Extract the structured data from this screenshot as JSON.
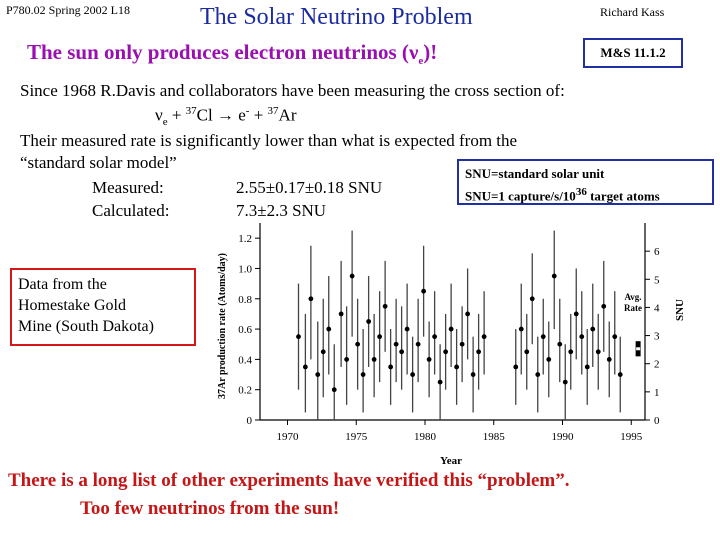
{
  "header": {
    "course": "P780.02 Spring 2002 L18",
    "title": "The Solar Neutrino Problem",
    "author": "Richard Kass"
  },
  "subtitle": {
    "text": "The sun only produces electron neutrinos (",
    "nu": "ν",
    "sub": "e",
    "close": ")!"
  },
  "ref_box": "M&S 11.1.2",
  "body": {
    "line1": "Since 1968 R.Davis and collaborators have been measuring the cross section of:",
    "reaction": {
      "lead": "ν",
      "nu_sub": "e",
      "plus1": " + ",
      "cl_mass": "37",
      "cl": "Cl ",
      "arrow": "→",
      "e": " e",
      "e_sup": "-",
      "plus2": " + ",
      "ar_mass": "37",
      "ar": "Ar"
    },
    "line3": "Their measured rate is significantly lower than what is expected from the",
    "line4": "“standard solar model”",
    "measured_label": "Measured:",
    "measured_value": "2.55±0.17±0.18 SNU",
    "calculated_label": "Calculated:",
    "calculated_value": "7.3±2.3 SNU"
  },
  "snu_box": {
    "line1": "SNU=standard solar unit",
    "line2_pre": "SNU=1 capture/s/10",
    "line2_exp": "36",
    "line2_post": " target atoms"
  },
  "data_box": {
    "line1": "Data from the",
    "line2": "Homestake Gold",
    "line3": "Mine (South Dakota)"
  },
  "bottom": {
    "line1": "There is a long list of other experiments have verified this “problem”.",
    "line2": "Too few neutrinos from the sun!"
  },
  "chart_data": {
    "type": "scatter",
    "xlabel": "Year",
    "ylabel": "37Ar production rate (Atoms/day)",
    "y2label": "SNU",
    "xlim": [
      1968,
      1996
    ],
    "ylim": [
      0,
      1.3
    ],
    "y2lim": [
      0,
      7
    ],
    "x_ticks": [
      "1970",
      "1975",
      "1980",
      "1985",
      "1990",
      "1995"
    ],
    "y_ticks": [
      "0",
      "0.2",
      "0.4",
      "0.6",
      "0.8",
      "1.0",
      "1.2"
    ],
    "y2_ticks": [
      "0",
      "1",
      "2",
      "3",
      "4",
      "5",
      "6"
    ],
    "annotation_line1": "Avg.",
    "annotation_line2": "Rate",
    "avg_rate": 0.47,
    "points": [
      {
        "x": 1970.8,
        "y": 0.55,
        "lo": 0.2,
        "hi": 0.9
      },
      {
        "x": 1971.3,
        "y": 0.35,
        "lo": 0.05,
        "hi": 0.7
      },
      {
        "x": 1971.7,
        "y": 0.8,
        "lo": 0.4,
        "hi": 1.15
      },
      {
        "x": 1972.2,
        "y": 0.3,
        "lo": 0.0,
        "hi": 0.65
      },
      {
        "x": 1972.6,
        "y": 0.45,
        "lo": 0.15,
        "hi": 0.8
      },
      {
        "x": 1973.0,
        "y": 0.6,
        "lo": 0.3,
        "hi": 0.95
      },
      {
        "x": 1973.4,
        "y": 0.2,
        "lo": 0.0,
        "hi": 0.5
      },
      {
        "x": 1973.9,
        "y": 0.7,
        "lo": 0.35,
        "hi": 1.05
      },
      {
        "x": 1974.3,
        "y": 0.4,
        "lo": 0.1,
        "hi": 0.75
      },
      {
        "x": 1974.7,
        "y": 0.95,
        "lo": 0.55,
        "hi": 1.25
      },
      {
        "x": 1975.1,
        "y": 0.5,
        "lo": 0.2,
        "hi": 0.8
      },
      {
        "x": 1975.5,
        "y": 0.3,
        "lo": 0.05,
        "hi": 0.6
      },
      {
        "x": 1975.9,
        "y": 0.65,
        "lo": 0.35,
        "hi": 0.95
      },
      {
        "x": 1976.3,
        "y": 0.4,
        "lo": 0.15,
        "hi": 0.7
      },
      {
        "x": 1976.7,
        "y": 0.55,
        "lo": 0.25,
        "hi": 0.85
      },
      {
        "x": 1977.1,
        "y": 0.75,
        "lo": 0.45,
        "hi": 1.05
      },
      {
        "x": 1977.5,
        "y": 0.35,
        "lo": 0.1,
        "hi": 0.6
      },
      {
        "x": 1977.9,
        "y": 0.5,
        "lo": 0.25,
        "hi": 0.8
      },
      {
        "x": 1978.3,
        "y": 0.45,
        "lo": 0.2,
        "hi": 0.75
      },
      {
        "x": 1978.7,
        "y": 0.6,
        "lo": 0.3,
        "hi": 0.9
      },
      {
        "x": 1979.1,
        "y": 0.3,
        "lo": 0.05,
        "hi": 0.55
      },
      {
        "x": 1979.5,
        "y": 0.5,
        "lo": 0.25,
        "hi": 0.8
      },
      {
        "x": 1979.9,
        "y": 0.85,
        "lo": 0.55,
        "hi": 1.15
      },
      {
        "x": 1980.3,
        "y": 0.4,
        "lo": 0.15,
        "hi": 0.65
      },
      {
        "x": 1980.7,
        "y": 0.55,
        "lo": 0.3,
        "hi": 0.85
      },
      {
        "x": 1981.1,
        "y": 0.25,
        "lo": 0.0,
        "hi": 0.5
      },
      {
        "x": 1981.5,
        "y": 0.45,
        "lo": 0.2,
        "hi": 0.7
      },
      {
        "x": 1981.9,
        "y": 0.6,
        "lo": 0.35,
        "hi": 0.9
      },
      {
        "x": 1982.3,
        "y": 0.35,
        "lo": 0.1,
        "hi": 0.6
      },
      {
        "x": 1982.7,
        "y": 0.5,
        "lo": 0.25,
        "hi": 0.75
      },
      {
        "x": 1983.1,
        "y": 0.7,
        "lo": 0.4,
        "hi": 1.0
      },
      {
        "x": 1983.5,
        "y": 0.3,
        "lo": 0.05,
        "hi": 0.55
      },
      {
        "x": 1983.9,
        "y": 0.45,
        "lo": 0.2,
        "hi": 0.7
      },
      {
        "x": 1984.3,
        "y": 0.55,
        "lo": 0.3,
        "hi": 0.85
      },
      {
        "x": 1986.6,
        "y": 0.35,
        "lo": 0.1,
        "hi": 0.6
      },
      {
        "x": 1987.0,
        "y": 0.6,
        "lo": 0.3,
        "hi": 0.9
      },
      {
        "x": 1987.4,
        "y": 0.45,
        "lo": 0.2,
        "hi": 0.7
      },
      {
        "x": 1987.8,
        "y": 0.8,
        "lo": 0.5,
        "hi": 1.1
      },
      {
        "x": 1988.2,
        "y": 0.3,
        "lo": 0.05,
        "hi": 0.55
      },
      {
        "x": 1988.6,
        "y": 0.55,
        "lo": 0.3,
        "hi": 0.8
      },
      {
        "x": 1989.0,
        "y": 0.4,
        "lo": 0.15,
        "hi": 0.65
      },
      {
        "x": 1989.4,
        "y": 0.95,
        "lo": 0.6,
        "hi": 1.25
      },
      {
        "x": 1989.8,
        "y": 0.5,
        "lo": 0.25,
        "hi": 0.8
      },
      {
        "x": 1990.2,
        "y": 0.25,
        "lo": 0.0,
        "hi": 0.5
      },
      {
        "x": 1990.6,
        "y": 0.45,
        "lo": 0.2,
        "hi": 0.7
      },
      {
        "x": 1991.0,
        "y": 0.7,
        "lo": 0.4,
        "hi": 1.0
      },
      {
        "x": 1991.4,
        "y": 0.55,
        "lo": 0.3,
        "hi": 0.85
      },
      {
        "x": 1991.8,
        "y": 0.35,
        "lo": 0.1,
        "hi": 0.6
      },
      {
        "x": 1992.2,
        "y": 0.6,
        "lo": 0.35,
        "hi": 0.9
      },
      {
        "x": 1992.6,
        "y": 0.45,
        "lo": 0.2,
        "hi": 0.7
      },
      {
        "x": 1993.0,
        "y": 0.75,
        "lo": 0.45,
        "hi": 1.05
      },
      {
        "x": 1993.4,
        "y": 0.4,
        "lo": 0.15,
        "hi": 0.65
      },
      {
        "x": 1993.8,
        "y": 0.55,
        "lo": 0.3,
        "hi": 0.85
      },
      {
        "x": 1994.2,
        "y": 0.3,
        "lo": 0.05,
        "hi": 0.55
      }
    ]
  }
}
